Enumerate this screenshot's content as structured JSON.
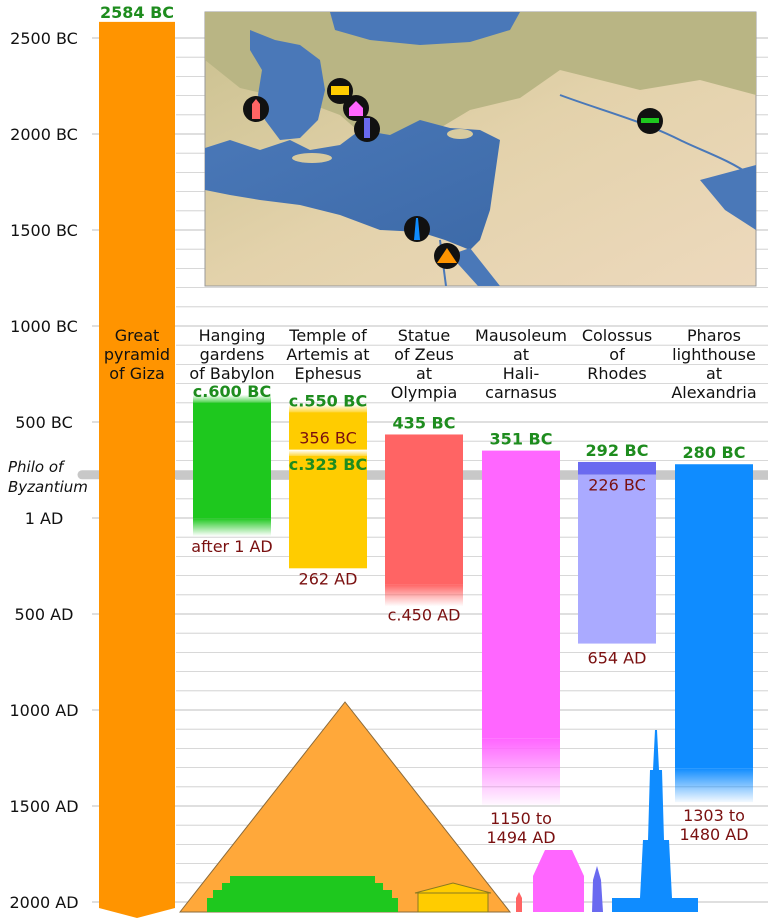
{
  "colors": {
    "pyramid": "#ff9400",
    "gardens": "#1ec81e",
    "artemis": "#ffcc00",
    "zeus": "#ff6464",
    "mausoleum": "#ff66ff",
    "colossus": "#aaaaff",
    "pharos": "#0f8cff",
    "green_text": "#1e8c1e",
    "red_text": "#7a1010",
    "grid": "#cccccc",
    "philo_line": "#c8c8c8"
  },
  "chart_data": {
    "type": "bar",
    "orientation": "vertical-time",
    "ylim": [
      -2600,
      2000
    ],
    "y_inverted": true,
    "grid": true,
    "yticks": [
      {
        "value": -2500,
        "label": "2500 BC"
      },
      {
        "value": -2000,
        "label": "2000 BC"
      },
      {
        "value": -1500,
        "label": "1500 BC"
      },
      {
        "value": -1000,
        "label": "1000 BC"
      },
      {
        "value": -500,
        "label": "500 BC"
      },
      {
        "value": 1,
        "label": "1 AD"
      },
      {
        "value": 500,
        "label": "500 AD"
      },
      {
        "value": 1000,
        "label": "1000 AD"
      },
      {
        "value": 1500,
        "label": "1500 AD"
      },
      {
        "value": 2000,
        "label": "2000 AD"
      }
    ],
    "reference_line": {
      "value": -225,
      "label": "Philo of Byzantium"
    },
    "series": [
      {
        "key": "pyramid",
        "name": "Great pyramid of Giza",
        "start": -2584,
        "end": 2000,
        "start_label": "2584 BC",
        "end_label": "",
        "ongoing": true
      },
      {
        "key": "gardens",
        "name": "Hanging gardens of Babylon",
        "start": -600,
        "end": 1,
        "start_label": "c.600 BC",
        "end_label": "after 1 AD"
      },
      {
        "key": "artemis",
        "name": "Temple of Artemis at Ephesus",
        "start": -550,
        "end": 262,
        "start_label": "c.550 BC",
        "end_label": "262 AD",
        "gap_start": -356,
        "gap_end": -323,
        "gap_start_label": "356 BC",
        "gap_end_label": "c.323 BC"
      },
      {
        "key": "zeus",
        "name": "Statue of Zeus at Olympia",
        "start": -435,
        "end": 450,
        "start_label": "435 BC",
        "end_label": "c.450 AD"
      },
      {
        "key": "mausoleum",
        "name": "Mausoleum at Halicarnasus",
        "start": -351,
        "end": 1494,
        "start_label": "351 BC",
        "end_label": "1150 to 1494 AD",
        "fade_from": 1150
      },
      {
        "key": "colossus",
        "name": "Colossus of Rhodes",
        "start": -292,
        "end": 654,
        "start_label": "292 BC",
        "end_label": "654 AD",
        "active_end": -226,
        "active_end_label": "226 BC"
      },
      {
        "key": "pharos",
        "name": "Pharos lighthouse at Alexandria",
        "start": -280,
        "end": 1480,
        "start_label": "280 BC",
        "end_label": "1303 to 1480 AD",
        "fade_from": 1303
      }
    ]
  }
}
